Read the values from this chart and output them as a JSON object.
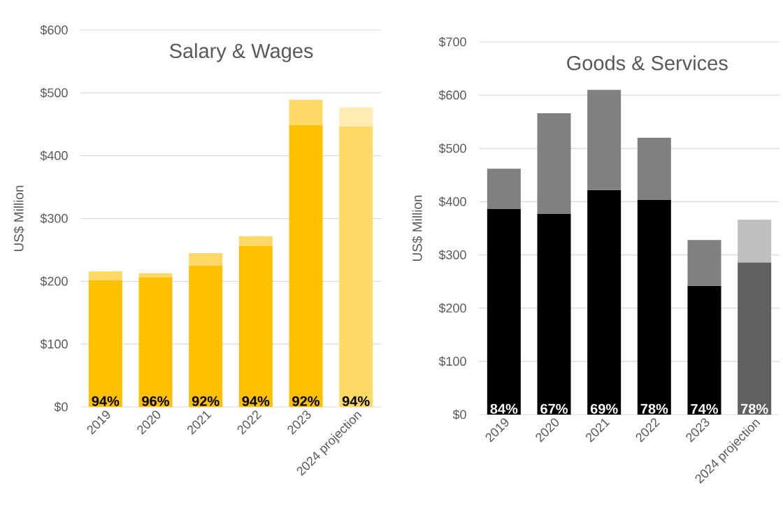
{
  "chart_data": [
    {
      "type": "bar",
      "title": "Salary & Wages",
      "ylabel": "US$ Million",
      "stacked": true,
      "grid": "y",
      "categories": [
        "2019",
        "2020",
        "2021",
        "2022",
        "2023",
        "2024 projection"
      ],
      "ylim": [
        0,
        600
      ],
      "yticks": [
        {
          "value": 0,
          "label": "$0"
        },
        {
          "value": 100,
          "label": "$100"
        },
        {
          "value": 200,
          "label": "$200"
        },
        {
          "value": 300,
          "label": "$300"
        },
        {
          "value": 400,
          "label": "$400"
        },
        {
          "value": 500,
          "label": "$500"
        },
        {
          "value": 600,
          "label": "$600"
        }
      ],
      "series": [
        {
          "colors": [
            "#ffc000",
            "#ffc000",
            "#ffc000",
            "#ffc000",
            "#ffc000",
            "#ffd966"
          ],
          "values": [
            202,
            206,
            225,
            256,
            449,
            447
          ]
        },
        {
          "colors": [
            "#ffd966",
            "#ffd966",
            "#ffd966",
            "#ffd966",
            "#ffd966",
            "#ffecb3"
          ],
          "values": [
            14,
            7,
            20,
            16,
            40,
            30
          ]
        }
      ],
      "annotations": [
        {
          "text": "94%",
          "x": "2019",
          "y": 0
        },
        {
          "text": "96%",
          "x": "2020",
          "y": 0
        },
        {
          "text": "92%",
          "x": "2021",
          "y": 0
        },
        {
          "text": "94%",
          "x": "2022",
          "y": 0
        },
        {
          "text": "92%",
          "x": "2023",
          "y": 0
        },
        {
          "text": "94%",
          "x": "2024 projection",
          "y": 0
        }
      ]
    },
    {
      "type": "bar",
      "title": "Goods & Services",
      "ylabel": "US$ Million",
      "stacked": true,
      "grid": "y",
      "categories": [
        "2019",
        "2020",
        "2021",
        "2022",
        "2023",
        "2024 projection"
      ],
      "ylim": [
        0,
        700
      ],
      "yticks": [
        {
          "value": 0,
          "label": "$0"
        },
        {
          "value": 100,
          "label": "$100"
        },
        {
          "value": 200,
          "label": "$200"
        },
        {
          "value": 300,
          "label": "$300"
        },
        {
          "value": 400,
          "label": "$400"
        },
        {
          "value": 500,
          "label": "$500"
        },
        {
          "value": 600,
          "label": "$600"
        },
        {
          "value": 700,
          "label": "$700"
        }
      ],
      "series": [
        {
          "colors": [
            "#000000",
            "#000000",
            "#000000",
            "#000000",
            "#000000",
            "#606060"
          ],
          "values": [
            386,
            377,
            422,
            404,
            242,
            286
          ]
        },
        {
          "colors": [
            "#808080",
            "#808080",
            "#808080",
            "#808080",
            "#808080",
            "#bfbfbf"
          ],
          "values": [
            76,
            189,
            188,
            116,
            86,
            80
          ]
        }
      ],
      "annotations": [
        {
          "text": "84%",
          "x": "2019",
          "y": 0
        },
        {
          "text": "67%",
          "x": "2020",
          "y": 0
        },
        {
          "text": "69%",
          "x": "2021",
          "y": 0
        },
        {
          "text": "78%",
          "x": "2022",
          "y": 0
        },
        {
          "text": "74%",
          "x": "2023",
          "y": 0
        },
        {
          "text": "78%",
          "x": "2024 projection",
          "y": 0
        }
      ]
    }
  ]
}
